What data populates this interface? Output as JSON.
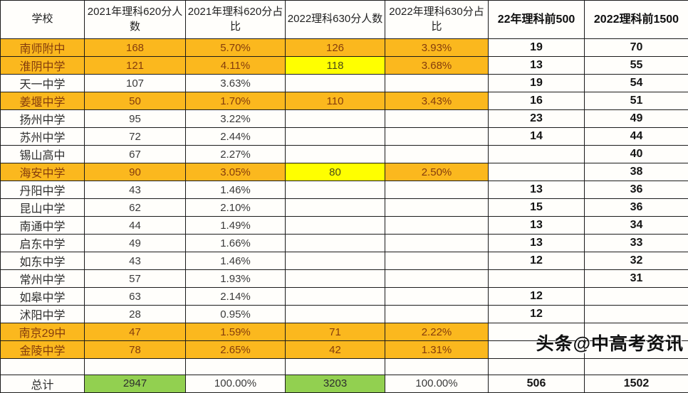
{
  "watermark": {
    "text": "头条@中高考资讯"
  },
  "colors": {
    "orange_row_bg": "#FBB81E",
    "orange_row_text": "#843C0C",
    "yellow_cell_bg": "#FFFF00",
    "green_cell_bg": "#92D050",
    "grid_border": "#1B1B1B"
  },
  "chart_data": {
    "type": "table",
    "columns": [
      "学校",
      "2021年理科620分人数",
      "2021年理科620分占比",
      "2022理科630分人数",
      "2022年理科630分占比",
      "22年理科前500",
      "2022理科前1500"
    ],
    "rows": [
      [
        "南师附中",
        "168",
        "5.70%",
        "126",
        "3.93%",
        "19",
        "70"
      ],
      [
        "淮阴中学",
        "121",
        "4.11%",
        "118",
        "3.68%",
        "13",
        "55"
      ],
      [
        "天一中学",
        "107",
        "3.63%",
        "",
        "",
        "19",
        "54"
      ],
      [
        "姜堰中学",
        "50",
        "1.70%",
        "110",
        "3.43%",
        "16",
        "51"
      ],
      [
        "扬州中学",
        "95",
        "3.22%",
        "",
        "",
        "23",
        "49"
      ],
      [
        "苏州中学",
        "72",
        "2.44%",
        "",
        "",
        "14",
        "44"
      ],
      [
        "锡山高中",
        "67",
        "2.27%",
        "",
        "",
        "",
        "40"
      ],
      [
        "海安中学",
        "90",
        "3.05%",
        "80",
        "2.50%",
        "",
        "38"
      ],
      [
        "丹阳中学",
        "43",
        "1.46%",
        "",
        "",
        "13",
        "36"
      ],
      [
        "昆山中学",
        "62",
        "2.10%",
        "",
        "",
        "15",
        "36"
      ],
      [
        "南通中学",
        "44",
        "1.49%",
        "",
        "",
        "13",
        "34"
      ],
      [
        "启东中学",
        "49",
        "1.66%",
        "",
        "",
        "13",
        "33"
      ],
      [
        "如东中学",
        "43",
        "1.46%",
        "",
        "",
        "12",
        "32"
      ],
      [
        "常州中学",
        "57",
        "1.93%",
        "",
        "",
        "",
        "31"
      ],
      [
        "如皋中学",
        "63",
        "2.14%",
        "",
        "",
        "12",
        ""
      ],
      [
        "沭阳中学",
        "28",
        "0.95%",
        "",
        "",
        "12",
        ""
      ],
      [
        "南京29中",
        "47",
        "1.59%",
        "71",
        "2.22%",
        "",
        ""
      ],
      [
        "金陵中学",
        "78",
        "2.65%",
        "42",
        "1.31%",
        "",
        ""
      ],
      [
        "",
        "",
        "",
        "",
        "",
        "",
        ""
      ],
      [
        "总计",
        "2947",
        "100.00%",
        "3203",
        "100.00%",
        "506",
        "1502"
      ]
    ],
    "row_highlight": [
      "orange",
      "orange",
      "none",
      "orange",
      "none",
      "none",
      "none",
      "orange",
      "none",
      "none",
      "none",
      "none",
      "none",
      "none",
      "none",
      "none",
      "orange",
      "orange",
      "empty",
      "total"
    ],
    "yellow_cells": [
      [
        1,
        3
      ],
      [
        7,
        3
      ]
    ],
    "green_cells": [
      [
        19,
        1
      ],
      [
        19,
        3
      ]
    ],
    "title": "",
    "legend": "off",
    "grid": "on"
  }
}
